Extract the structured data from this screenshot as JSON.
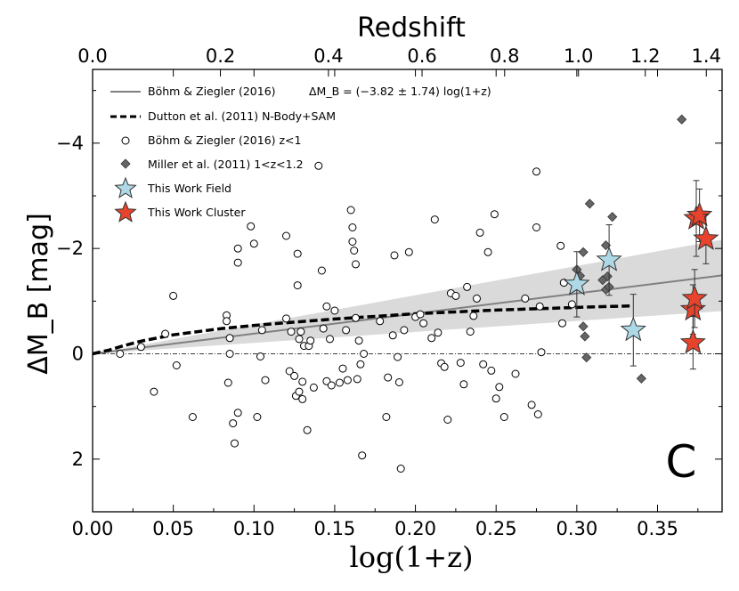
{
  "chart_data": {
    "type": "scatter",
    "title": "Redshift",
    "xlabel": "log(1+z)",
    "ylabel": "ΔM_B [mag]",
    "panel_label": "C",
    "xlim": [
      0.0,
      0.39
    ],
    "ylim": [
      3.0,
      -5.4
    ],
    "top_xlim_redshift": [
      0.0,
      1.455
    ],
    "bottom_ticks": [
      "0.00",
      "0.05",
      "0.10",
      "0.15",
      "0.20",
      "0.25",
      "0.30",
      "0.35"
    ],
    "bottom_tick_values": [
      0.0,
      0.05,
      0.1,
      0.15,
      0.2,
      0.25,
      0.3,
      0.35
    ],
    "top_ticks": [
      "0.0",
      "0.2",
      "0.4",
      "0.6",
      "0.8",
      "1.0",
      "1.2",
      "1.4"
    ],
    "top_tick_values": [
      0.0,
      0.2,
      0.4,
      0.6,
      0.8,
      1.0,
      1.2,
      1.4
    ],
    "left_ticks": [
      "−4",
      "−2",
      "0",
      "2"
    ],
    "left_tick_values": [
      -4,
      -2,
      0,
      2
    ],
    "legend": {
      "position": "upper-left",
      "entries": [
        {
          "label": "Böhm & Ziegler (2016)",
          "formula": "ΔM_B = (−3.82 ± 1.74) log(1+z)"
        },
        {
          "label": "Dutton et al. (2011) N-Body+SAM"
        },
        {
          "label": "Böhm & Ziegler (2016) z<1"
        },
        {
          "label": "Miller et al. (2011) 1<z<1.2"
        },
        {
          "label": "This Work Field"
        },
        {
          "label": "This Work Cluster"
        }
      ]
    },
    "fit_slope": -3.82,
    "fit_slope_error": 1.74,
    "colors": {
      "fit_line": "#808080",
      "fit_band": "#d3d3d3",
      "dutton": "#000000",
      "miller": "#666666",
      "field": "#add8e6",
      "cluster": "#e8432d"
    },
    "dutton_curve": {
      "x": [
        0.0,
        0.01,
        0.02,
        0.03,
        0.05,
        0.08,
        0.1,
        0.12,
        0.15,
        0.18,
        0.2,
        0.22,
        0.25,
        0.28,
        0.3,
        0.32,
        0.335
      ],
      "y": [
        0.0,
        -0.07,
        -0.16,
        -0.24,
        -0.36,
        -0.48,
        -0.54,
        -0.59,
        -0.66,
        -0.72,
        -0.76,
        -0.79,
        -0.83,
        -0.86,
        -0.88,
        -0.9,
        -0.91
      ]
    },
    "bohm_points": {
      "x": [
        0.017,
        0.03,
        0.038,
        0.045,
        0.05,
        0.052,
        0.062,
        0.083,
        0.083,
        0.084,
        0.085,
        0.085,
        0.087,
        0.088,
        0.09,
        0.09,
        0.09,
        0.098,
        0.1,
        0.102,
        0.104,
        0.105,
        0.107,
        0.12,
        0.12,
        0.122,
        0.123,
        0.125,
        0.126,
        0.127,
        0.127,
        0.128,
        0.128,
        0.129,
        0.13,
        0.13,
        0.131,
        0.133,
        0.134,
        0.135,
        0.137,
        0.14,
        0.142,
        0.143,
        0.145,
        0.145,
        0.147,
        0.148,
        0.15,
        0.153,
        0.155,
        0.157,
        0.158,
        0.16,
        0.161,
        0.161,
        0.162,
        0.163,
        0.163,
        0.164,
        0.165,
        0.166,
        0.167,
        0.168,
        0.178,
        0.182,
        0.183,
        0.186,
        0.187,
        0.189,
        0.19,
        0.191,
        0.193,
        0.196,
        0.2,
        0.203,
        0.205,
        0.21,
        0.212,
        0.214,
        0.216,
        0.218,
        0.22,
        0.222,
        0.225,
        0.228,
        0.23,
        0.232,
        0.234,
        0.236,
        0.238,
        0.24,
        0.242,
        0.245,
        0.247,
        0.249,
        0.25,
        0.252,
        0.255,
        0.262,
        0.268,
        0.272,
        0.275,
        0.275,
        0.276,
        0.277,
        0.278,
        0.29,
        0.291,
        0.292,
        0.297
      ],
      "y": [
        0.0,
        -0.13,
        0.72,
        -0.38,
        -1.1,
        0.22,
        1.2,
        -0.73,
        -0.62,
        0.55,
        0.0,
        -0.3,
        1.32,
        1.7,
        -2.0,
        -1.73,
        1.12,
        -2.42,
        -2.09,
        1.2,
        0.05,
        -0.45,
        0.5,
        -2.24,
        -0.67,
        0.33,
        -0.42,
        0.42,
        0.8,
        -1.9,
        -1.3,
        0.72,
        -0.28,
        -0.42,
        0.53,
        0.86,
        -0.15,
        1.45,
        -0.15,
        -0.25,
        0.64,
        -3.57,
        -1.58,
        -0.48,
        -0.9,
        0.52,
        -0.28,
        0.6,
        -0.82,
        0.55,
        0.28,
        -0.45,
        0.5,
        -2.73,
        -2.4,
        -2.13,
        -1.96,
        -1.7,
        -0.68,
        0.48,
        -0.25,
        0.2,
        1.93,
        0.0,
        -0.62,
        1.2,
        0.45,
        -0.35,
        -1.87,
        0.06,
        0.54,
        2.18,
        -0.45,
        -1.93,
        -0.7,
        -0.75,
        -0.58,
        -0.3,
        -2.55,
        -0.4,
        0.18,
        0.25,
        1.25,
        -1.15,
        -1.1,
        0.17,
        0.58,
        -1.27,
        -0.42,
        -0.72,
        -1.05,
        -2.3,
        0.2,
        -1.93,
        0.32,
        -2.65,
        0.85,
        0.63,
        1.2,
        0.38,
        -1.05,
        0.97,
        -2.4,
        -3.46,
        1.15,
        -0.9,
        -0.03,
        -2.05,
        -0.58,
        -1.35,
        -0.94
      ]
    },
    "miller_points": {
      "x": [
        0.3,
        0.302,
        0.304,
        0.304,
        0.305,
        0.306,
        0.308,
        0.316,
        0.318,
        0.318,
        0.319,
        0.32,
        0.322,
        0.34,
        0.365
      ],
      "y": [
        -1.6,
        -1.48,
        -1.93,
        -0.52,
        -0.33,
        0.07,
        -2.85,
        -1.4,
        -2.06,
        -1.22,
        -1.47,
        -1.27,
        -2.6,
        0.47,
        -4.45
      ]
    },
    "field_points": {
      "x": [
        0.3,
        0.32,
        0.335
      ],
      "y": [
        -1.32,
        -1.78,
        -0.45
      ],
      "yerr": [
        0.62,
        0.67,
        0.68
      ]
    },
    "cluster_points": {
      "x": [
        0.372,
        0.372,
        0.373,
        0.374,
        0.376,
        0.38
      ],
      "y": [
        -0.84,
        -0.21,
        -1.05,
        -2.57,
        -2.63,
        -2.18
      ],
      "yerr": [
        0.47,
        0.5,
        0.55,
        0.72,
        0.5,
        0.47
      ]
    }
  }
}
